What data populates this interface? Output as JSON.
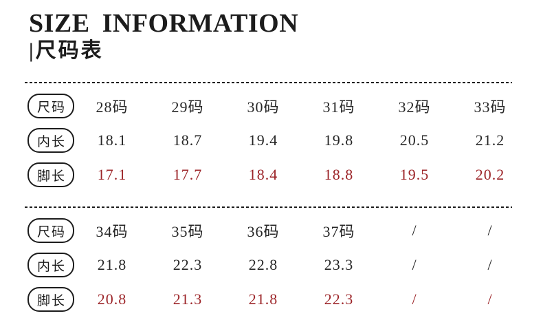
{
  "header": {
    "title": "SIZE INFORMATION",
    "subtitle": "|尺码表"
  },
  "colors": {
    "text": "#1c1c1c",
    "value_red": "#9c2428"
  },
  "tables": [
    {
      "rows": [
        {
          "label": "尺码",
          "values": [
            "28码",
            "29码",
            "30码",
            "31码",
            "32码",
            "33码"
          ],
          "color": "black"
        },
        {
          "label": "内长",
          "values": [
            "18.1",
            "18.7",
            "19.4",
            "19.8",
            "20.5",
            "21.2"
          ],
          "color": "black"
        },
        {
          "label": "脚长",
          "values": [
            "17.1",
            "17.7",
            "18.4",
            "18.8",
            "19.5",
            "20.2"
          ],
          "color": "red"
        }
      ]
    },
    {
      "rows": [
        {
          "label": "尺码",
          "values": [
            "34码",
            "35码",
            "36码",
            "37码",
            "/",
            "/"
          ],
          "color": "black"
        },
        {
          "label": "内长",
          "values": [
            "21.8",
            "22.3",
            "22.8",
            "23.3",
            "/",
            "/"
          ],
          "color": "black"
        },
        {
          "label": "脚长",
          "values": [
            "20.8",
            "21.3",
            "21.8",
            "22.3",
            "/",
            "/"
          ],
          "color": "red"
        }
      ]
    }
  ]
}
